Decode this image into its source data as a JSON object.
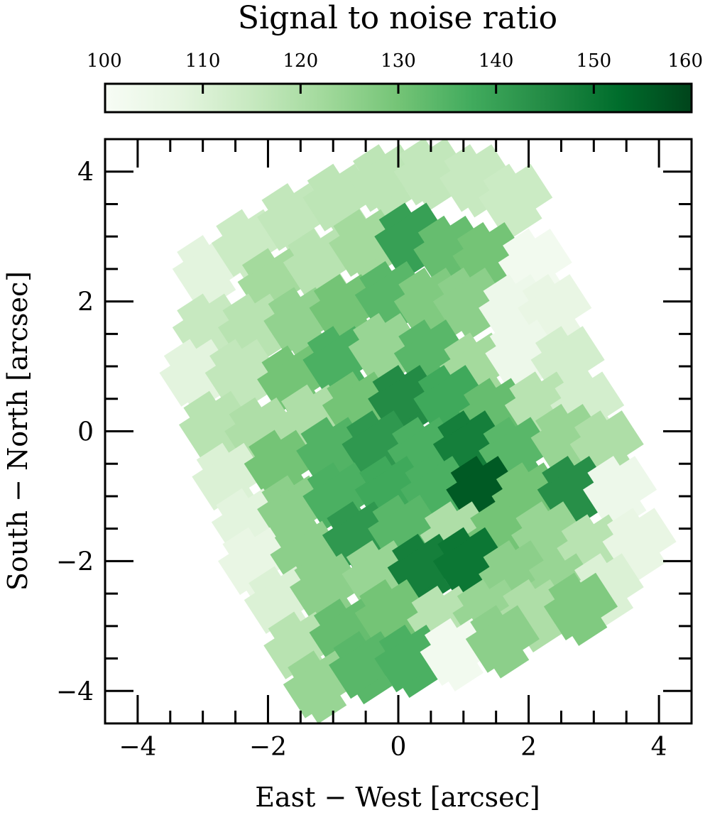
{
  "chart_data": {
    "type": "heatmap",
    "title": "Signal to noise ratio",
    "xlabel": "East − West [arcsec]",
    "ylabel": "South − North [arcsec]",
    "xlim": [
      -4.5,
      4.5
    ],
    "ylim": [
      -4.5,
      4.5
    ],
    "x_ticks": [
      -4,
      -2,
      0,
      2,
      4
    ],
    "y_ticks": [
      -4,
      -2,
      0,
      2,
      4
    ],
    "x_tick_labels": [
      "−4",
      "−2",
      "0",
      "2",
      "4"
    ],
    "y_tick_labels": [
      "−4",
      "−2",
      "0",
      "2",
      "4"
    ],
    "colorbar": {
      "label": "Signal to noise ratio",
      "range": [
        100,
        160
      ],
      "ticks": [
        100,
        110,
        120,
        130,
        140,
        150,
        160
      ],
      "tick_labels": [
        "100",
        "110",
        "120",
        "130",
        "140",
        "150",
        "160"
      ],
      "colormap": "Greens",
      "colors": [
        "#f7fcf5",
        "#e5f5e0",
        "#c7e9c0",
        "#a1d99b",
        "#74c476",
        "#41ab5d",
        "#238b45",
        "#006d2c",
        "#00441b"
      ],
      "placement": "top"
    },
    "grid": false,
    "footprint_rotation_deg": 33,
    "bins": [
      {
        "x": -2.9,
        "y": 2.5,
        "snr": 108
      },
      {
        "x": -2.3,
        "y": 2.9,
        "snr": 114
      },
      {
        "x": -1.6,
        "y": 3.3,
        "snr": 116
      },
      {
        "x": -0.9,
        "y": 3.6,
        "snr": 117
      },
      {
        "x": -0.2,
        "y": 3.9,
        "snr": 117
      },
      {
        "x": 0.5,
        "y": 4.0,
        "snr": 116
      },
      {
        "x": 1.2,
        "y": 3.9,
        "snr": 115
      },
      {
        "x": 1.8,
        "y": 3.6,
        "snr": 114
      },
      {
        "x": -1.9,
        "y": 2.3,
        "snr": 122
      },
      {
        "x": -1.2,
        "y": 2.6,
        "snr": 118
      },
      {
        "x": -0.5,
        "y": 2.9,
        "snr": 122
      },
      {
        "x": 0.2,
        "y": 3.0,
        "snr": 140
      },
      {
        "x": 0.8,
        "y": 2.8,
        "snr": 132
      },
      {
        "x": 1.4,
        "y": 2.7,
        "snr": 130
      },
      {
        "x": 2.1,
        "y": 2.6,
        "snr": 102
      },
      {
        "x": -2.9,
        "y": 1.6,
        "snr": 115
      },
      {
        "x": -2.2,
        "y": 1.6,
        "snr": 118
      },
      {
        "x": -1.5,
        "y": 1.7,
        "snr": 125
      },
      {
        "x": -0.8,
        "y": 1.9,
        "snr": 130
      },
      {
        "x": -0.1,
        "y": 2.1,
        "snr": 134
      },
      {
        "x": 0.5,
        "y": 2.0,
        "snr": 128
      },
      {
        "x": 1.1,
        "y": 2.0,
        "snr": 126
      },
      {
        "x": 1.8,
        "y": 1.9,
        "snr": 104
      },
      {
        "x": 2.4,
        "y": 1.9,
        "snr": 106
      },
      {
        "x": -3.1,
        "y": 0.9,
        "snr": 108
      },
      {
        "x": -2.4,
        "y": 0.9,
        "snr": 116
      },
      {
        "x": -1.6,
        "y": 0.8,
        "snr": 130
      },
      {
        "x": -0.9,
        "y": 1.1,
        "snr": 136
      },
      {
        "x": -0.2,
        "y": 1.3,
        "snr": 124
      },
      {
        "x": 0.5,
        "y": 1.2,
        "snr": 134
      },
      {
        "x": 1.2,
        "y": 1.0,
        "snr": 122
      },
      {
        "x": 1.9,
        "y": 1.2,
        "snr": 104
      },
      {
        "x": 2.6,
        "y": 1.1,
        "snr": 112
      },
      {
        "x": -2.8,
        "y": 0.1,
        "snr": 118
      },
      {
        "x": -2.1,
        "y": 0.0,
        "snr": 120
      },
      {
        "x": -1.3,
        "y": 0.2,
        "snr": 120
      },
      {
        "x": -0.6,
        "y": 0.4,
        "snr": 130
      },
      {
        "x": 0.1,
        "y": 0.5,
        "snr": 145
      },
      {
        "x": 0.8,
        "y": 0.5,
        "snr": 138
      },
      {
        "x": 1.5,
        "y": 0.3,
        "snr": 132
      },
      {
        "x": 2.2,
        "y": 0.4,
        "snr": 118
      },
      {
        "x": 2.9,
        "y": 0.4,
        "snr": 112
      },
      {
        "x": -2.6,
        "y": -0.7,
        "snr": 110
      },
      {
        "x": -1.8,
        "y": -0.5,
        "snr": 130
      },
      {
        "x": -1.0,
        "y": -0.3,
        "snr": 135
      },
      {
        "x": -0.3,
        "y": -0.2,
        "snr": 142
      },
      {
        "x": 0.4,
        "y": -0.3,
        "snr": 136
      },
      {
        "x": 1.1,
        "y": -0.2,
        "snr": 148
      },
      {
        "x": 1.8,
        "y": -0.3,
        "snr": 134
      },
      {
        "x": 2.6,
        "y": -0.1,
        "snr": 124
      },
      {
        "x": 3.2,
        "y": -0.2,
        "snr": 120
      },
      {
        "x": -2.3,
        "y": -1.4,
        "snr": 108
      },
      {
        "x": -1.6,
        "y": -1.2,
        "snr": 126
      },
      {
        "x": -0.9,
        "y": -1.0,
        "snr": 136
      },
      {
        "x": -0.1,
        "y": -0.9,
        "snr": 138
      },
      {
        "x": 0.6,
        "y": -0.9,
        "snr": 136
      },
      {
        "x": 1.3,
        "y": -0.9,
        "snr": 156
      },
      {
        "x": 2.0,
        "y": -1.0,
        "snr": 130
      },
      {
        "x": 2.7,
        "y": -0.9,
        "snr": 144
      },
      {
        "x": 3.4,
        "y": -0.9,
        "snr": 104
      },
      {
        "x": -2.2,
        "y": -2.0,
        "snr": 106
      },
      {
        "x": -1.4,
        "y": -1.9,
        "snr": 126
      },
      {
        "x": -0.6,
        "y": -1.6,
        "snr": 142
      },
      {
        "x": 0.1,
        "y": -1.5,
        "snr": 134
      },
      {
        "x": 0.9,
        "y": -1.6,
        "snr": 120
      },
      {
        "x": 1.6,
        "y": -1.6,
        "snr": 130
      },
      {
        "x": 2.3,
        "y": -1.6,
        "snr": 124
      },
      {
        "x": 3.0,
        "y": -1.8,
        "snr": 118
      },
      {
        "x": 3.7,
        "y": -1.7,
        "snr": 106
      },
      {
        "x": -1.8,
        "y": -2.6,
        "snr": 110
      },
      {
        "x": -1.1,
        "y": -2.4,
        "snr": 126
      },
      {
        "x": -0.3,
        "y": -2.2,
        "snr": 124
      },
      {
        "x": 0.4,
        "y": -2.1,
        "snr": 148
      },
      {
        "x": 1.1,
        "y": -2.0,
        "snr": 150
      },
      {
        "x": 1.8,
        "y": -2.2,
        "snr": 126
      },
      {
        "x": 2.5,
        "y": -2.4,
        "snr": 124
      },
      {
        "x": 3.2,
        "y": -2.4,
        "snr": 110
      },
      {
        "x": -1.5,
        "y": -3.3,
        "snr": 118
      },
      {
        "x": -0.8,
        "y": -3.1,
        "snr": 132
      },
      {
        "x": -0.1,
        "y": -2.8,
        "snr": 130
      },
      {
        "x": 0.7,
        "y": -2.9,
        "snr": 118
      },
      {
        "x": 1.4,
        "y": -2.8,
        "snr": 124
      },
      {
        "x": 2.1,
        "y": -2.8,
        "snr": 120
      },
      {
        "x": 2.8,
        "y": -2.7,
        "snr": 128
      },
      {
        "x": -1.2,
        "y": -3.9,
        "snr": 124
      },
      {
        "x": -0.5,
        "y": -3.6,
        "snr": 134
      },
      {
        "x": 0.2,
        "y": -3.5,
        "snr": 136
      },
      {
        "x": 0.9,
        "y": -3.4,
        "snr": 102
      },
      {
        "x": 1.6,
        "y": -3.2,
        "snr": 126
      }
    ]
  }
}
